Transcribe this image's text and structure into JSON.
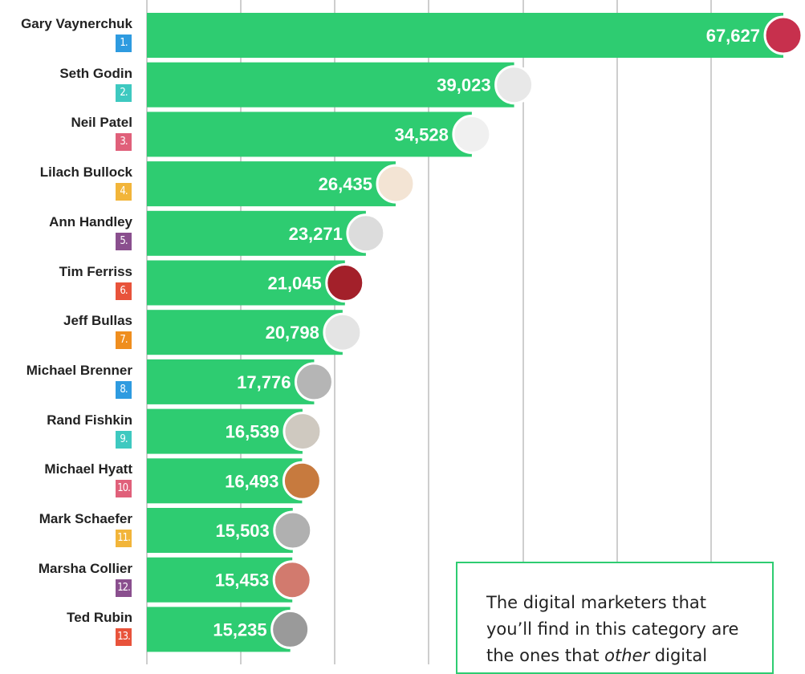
{
  "chart_data": {
    "type": "bar",
    "orientation": "horizontal",
    "title": "",
    "xlabel": "",
    "ylabel": "",
    "xlim": [
      0,
      69000
    ],
    "grid": true,
    "categories": [
      "Gary Vaynerchuk",
      "Seth Godin",
      "Neil Patel",
      "Lilach Bullock",
      "Ann Handley",
      "Tim Ferriss",
      "Jeff Bullas",
      "Michael Brenner",
      "Rand Fishkin",
      "Michael Hyatt",
      "Mark Schaefer",
      "Marsha Collier",
      "Ted Rubin"
    ],
    "values": [
      67627,
      39023,
      34528,
      26435,
      23271,
      21045,
      20798,
      17776,
      16539,
      16493,
      15503,
      15453,
      15235
    ],
    "value_labels": [
      "67,627",
      "39,023",
      "34,528",
      "26,435",
      "23,271",
      "21,045",
      "20,798",
      "17,776",
      "16,539",
      "16,493",
      "15,503",
      "15,453",
      "15,235"
    ],
    "ranks": [
      "1.",
      "2.",
      "3.",
      "4.",
      "5.",
      "6.",
      "7.",
      "8.",
      "9.",
      "10.",
      "11.",
      "12.",
      "13."
    ],
    "rank_colors": [
      "#2e9be0",
      "#3ec9c0",
      "#e0607a",
      "#f2b53a",
      "#8a4f8e",
      "#e8533b",
      "#ef8e1f",
      "#2e9be0",
      "#3ec9c0",
      "#e0607a",
      "#f2b53a",
      "#8a4f8e",
      "#e8533b"
    ],
    "avatar_colors": [
      "#c7304d",
      "#e8e8e8",
      "#f0f0f0",
      "#f3e4d4",
      "#dcdcdc",
      "#a3202a",
      "#e4e4e4",
      "#b5b5b5",
      "#cfc9c0",
      "#c77a3e",
      "#b0b0b0",
      "#d27a6e",
      "#9a9a9a"
    ],
    "bar_color": "#2ecc71",
    "label_color": "#ffffff"
  },
  "info_box": {
    "text_before": "The digital marketers that you’ll find in this category are the ones that ",
    "text_emphasis": "other",
    "text_after": " digital marketers follow."
  }
}
